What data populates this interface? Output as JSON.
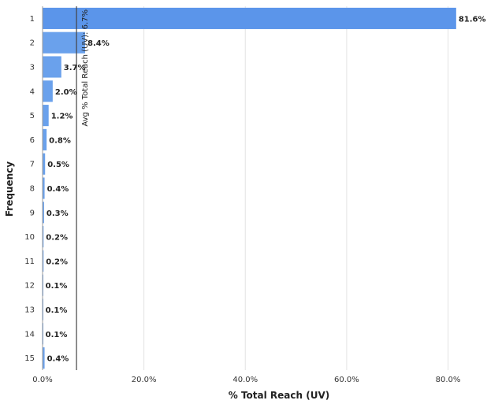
{
  "chart_data": {
    "type": "bar",
    "orientation": "horizontal",
    "categories": [
      "1",
      "2",
      "3",
      "4",
      "5",
      "6",
      "7",
      "8",
      "9",
      "10",
      "11",
      "12",
      "13",
      "14",
      "15"
    ],
    "values": [
      81.6,
      8.4,
      3.7,
      2.0,
      1.2,
      0.8,
      0.5,
      0.4,
      0.3,
      0.2,
      0.2,
      0.1,
      0.1,
      0.1,
      0.4
    ],
    "value_labels": [
      "81.6%",
      "8.4%",
      "3.7%",
      "2.0%",
      "1.2%",
      "0.8%",
      "0.5%",
      "0.4%",
      "0.3%",
      "0.2%",
      "0.2%",
      "0.1%",
      "0.1%",
      "0.1%",
      "0.4%"
    ],
    "xlabel": "% Total Reach (UV)",
    "ylabel": "Frequency",
    "xlim": [
      0,
      88
    ],
    "x_ticks": [
      0,
      20,
      40,
      60,
      80
    ],
    "x_tick_labels": [
      "0.0%",
      "20.0%",
      "40.0%",
      "60.0%",
      "80.0%"
    ],
    "reference_line": {
      "value": 6.7,
      "label": "Avg % Total Reach (UV): 6.7%"
    },
    "grid": "vertical",
    "bar_color": "#6aa1ec",
    "bar_color_top": "#5b95ea"
  }
}
